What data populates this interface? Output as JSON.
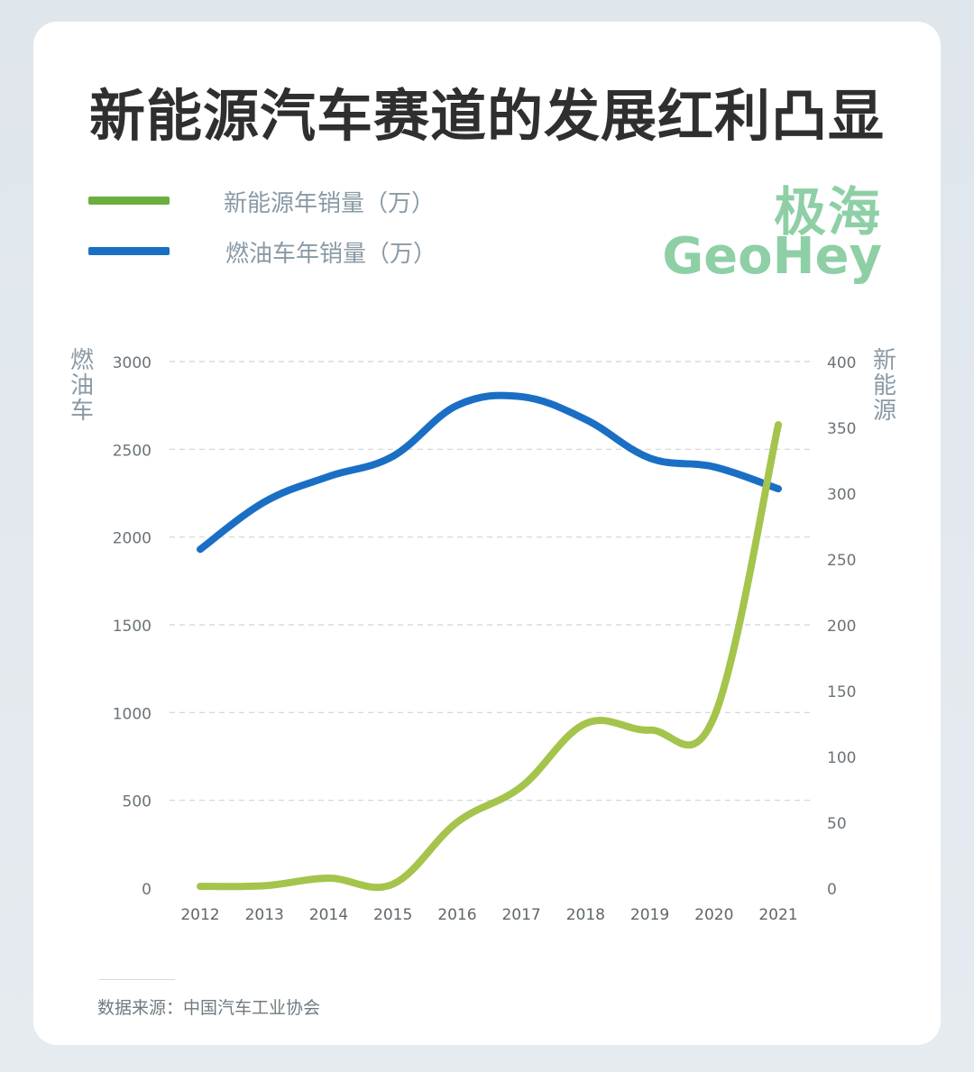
{
  "title": "新能源汽车赛道的发展红利凸显",
  "brand": {
    "cn": "极海",
    "en": "GeoHey",
    "color": "#8ecfa6"
  },
  "legend": [
    {
      "label": "新能源年销量（万）",
      "color": "#6aae3e"
    },
    {
      "label": "燃油车年销量（万）",
      "color": "#1a6fc4"
    }
  ],
  "axis_titles": {
    "left": "燃油车",
    "right": "新能源"
  },
  "source": "数据来源：中国汽车工业协会",
  "chart_data": {
    "type": "line",
    "x": [
      "2012",
      "2013",
      "2014",
      "2015",
      "2016",
      "2017",
      "2018",
      "2019",
      "2020",
      "2021"
    ],
    "y_left_ticks": [
      "0",
      "500",
      "1000",
      "1500",
      "2000",
      "2500",
      "3000"
    ],
    "y_right_ticks": [
      "0",
      "50",
      "100",
      "150",
      "200",
      "250",
      "300",
      "350",
      "400"
    ],
    "y_left_lim": [
      0,
      3000
    ],
    "y_right_lim": [
      0,
      400
    ],
    "grid": true,
    "series": [
      {
        "name": "燃油车年销量（万）",
        "axis": "left",
        "color": "#1a6fc4",
        "values": [
          1930,
          2200,
          2345,
          2460,
          2750,
          2800,
          2670,
          2450,
          2400,
          2275
        ]
      },
      {
        "name": "新能源年销量（万）",
        "axis": "right",
        "color": "#a4c44c",
        "values": [
          1.3,
          1.8,
          7.5,
          3,
          50,
          77,
          125,
          120,
          130,
          352
        ]
      }
    ]
  }
}
